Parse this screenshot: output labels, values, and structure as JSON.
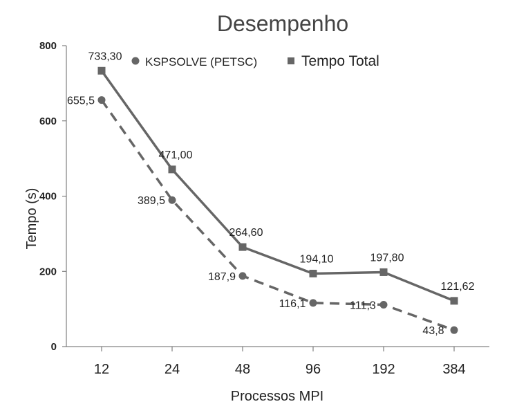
{
  "chart_data": {
    "type": "line",
    "title": "Desempenho",
    "xlabel": "Processos MPI",
    "ylabel": "Tempo (s)",
    "categories": [
      "12",
      "24",
      "48",
      "96",
      "192",
      "384"
    ],
    "yticks": [
      "0",
      "200",
      "400",
      "600",
      "800"
    ],
    "ylim": [
      0,
      800
    ],
    "grid": false,
    "legend_position": "top-right",
    "series": [
      {
        "name": "KSPSOLVE (PETSC)",
        "values": [
          655.5,
          389.5,
          187.9,
          116.1,
          111.3,
          43.8
        ],
        "labels": [
          "655,5",
          "389,5",
          "187,9",
          "116,1",
          "111,3",
          "43,8"
        ],
        "marker": "circle",
        "line_style": "dashed",
        "color": "#666666"
      },
      {
        "name": "Tempo Total",
        "values": [
          733.3,
          471.0,
          264.6,
          194.1,
          197.8,
          121.62
        ],
        "labels": [
          "733,30",
          "471,00",
          "264,60",
          "194,10",
          "197,80",
          "121,62"
        ],
        "marker": "square",
        "line_style": "solid",
        "color": "#666666"
      }
    ]
  }
}
